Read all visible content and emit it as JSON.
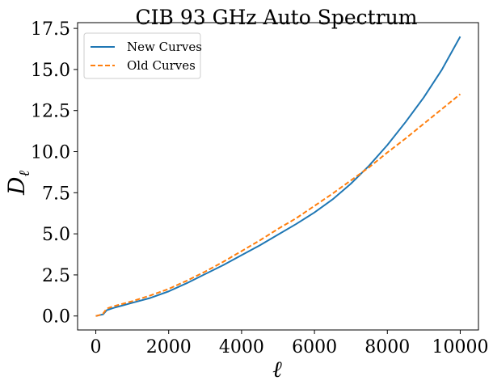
{
  "chart_data": {
    "type": "line",
    "title": "CIB 93 GHz Auto Spectrum",
    "xlabel": "ℓ",
    "ylabel": "D",
    "ylabel_sub": "ℓ",
    "xlim": [
      -500,
      10500
    ],
    "ylim": [
      -0.85,
      17.85
    ],
    "xticks": [
      0,
      2000,
      4000,
      6000,
      8000,
      10000
    ],
    "xtick_labels": [
      "0",
      "2000",
      "4000",
      "6000",
      "8000",
      "10000"
    ],
    "yticks": [
      0.0,
      2.5,
      5.0,
      7.5,
      10.0,
      12.5,
      15.0,
      17.5
    ],
    "ytick_labels": [
      "0.0",
      "2.5",
      "5.0",
      "7.5",
      "10.0",
      "12.5",
      "15.0",
      "17.5"
    ],
    "grid": false,
    "legend_position": "top-left",
    "series": [
      {
        "name": "New Curves",
        "color": "#1f77b4",
        "style": "solid",
        "x": [
          0,
          100,
          200,
          300,
          500,
          750,
          1000,
          1500,
          2000,
          2500,
          3000,
          3500,
          4000,
          4500,
          5000,
          5500,
          6000,
          6500,
          7000,
          7500,
          8000,
          8500,
          9000,
          9500,
          10000
        ],
        "y": [
          0.0,
          0.05,
          0.1,
          0.35,
          0.5,
          0.65,
          0.8,
          1.1,
          1.5,
          2.0,
          2.55,
          3.1,
          3.7,
          4.3,
          4.95,
          5.6,
          6.3,
          7.1,
          8.05,
          9.15,
          10.4,
          11.8,
          13.3,
          15.0,
          17.0
        ]
      },
      {
        "name": "Old Curves",
        "color": "#ff7f0e",
        "style": "dashed",
        "x": [
          0,
          100,
          200,
          300,
          500,
          750,
          1000,
          1500,
          2000,
          2500,
          3000,
          3500,
          4000,
          4500,
          5000,
          5500,
          6000,
          6500,
          7000,
          7500,
          8000,
          8500,
          9000,
          9500,
          10000
        ],
        "y": [
          0.0,
          0.05,
          0.15,
          0.45,
          0.6,
          0.75,
          0.9,
          1.25,
          1.65,
          2.15,
          2.7,
          3.3,
          3.95,
          4.6,
          5.3,
          5.95,
          6.7,
          7.45,
          8.25,
          9.05,
          9.95,
          10.8,
          11.7,
          12.6,
          13.5
        ]
      }
    ]
  }
}
